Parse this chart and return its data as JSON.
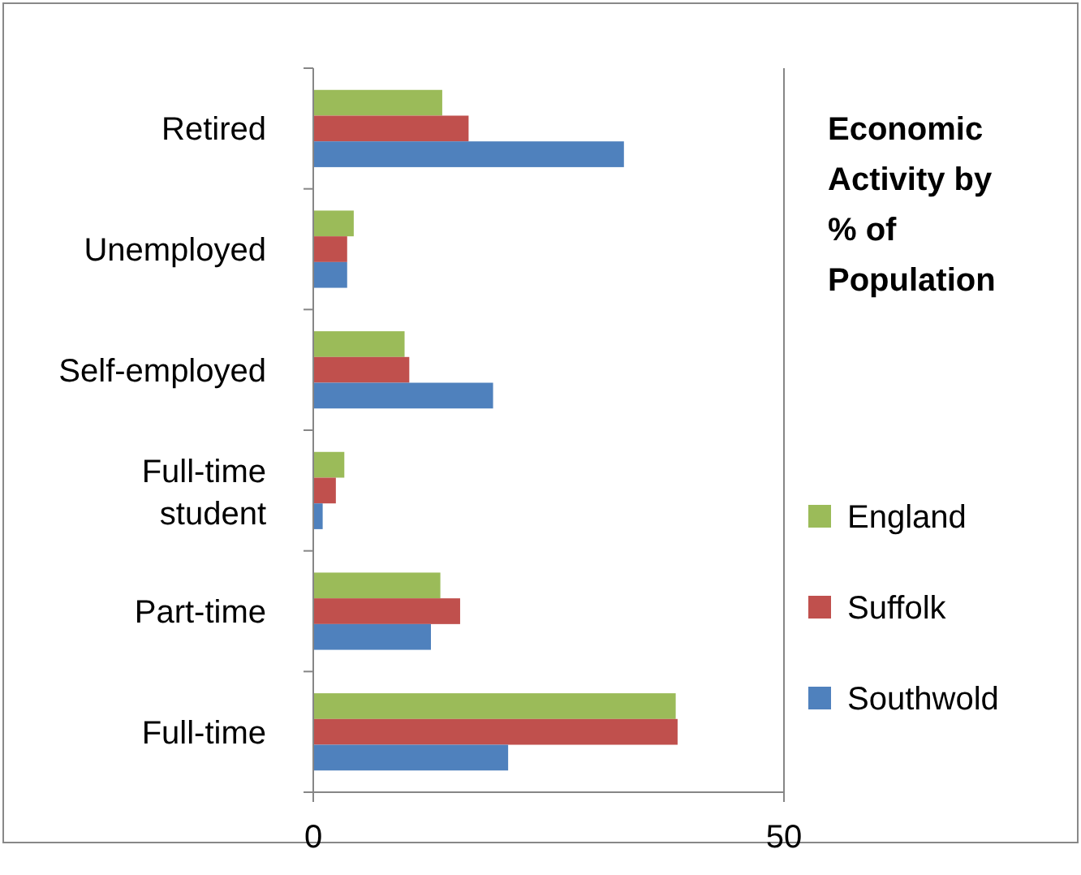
{
  "chart_data": {
    "type": "bar",
    "orientation": "horizontal",
    "title": "Economic Activity by % of Population",
    "categories": [
      "Retired",
      "Unemployed",
      "Self-employed",
      "Full-time student",
      "Part-time",
      "Full-time"
    ],
    "series": [
      {
        "name": "England",
        "color": "#9bbb59",
        "values": [
          13.7,
          4.3,
          9.7,
          3.3,
          13.5,
          38.5
        ]
      },
      {
        "name": "Suffolk",
        "color": "#c0504d",
        "values": [
          16.5,
          3.6,
          10.2,
          2.4,
          15.6,
          38.7
        ]
      },
      {
        "name": "Southwold",
        "color": "#4f81bd",
        "values": [
          33.0,
          3.6,
          19.1,
          1.0,
          12.5,
          20.7
        ]
      }
    ],
    "xlim": [
      0,
      50
    ],
    "xticks": [
      0,
      50
    ],
    "legend": "right"
  }
}
